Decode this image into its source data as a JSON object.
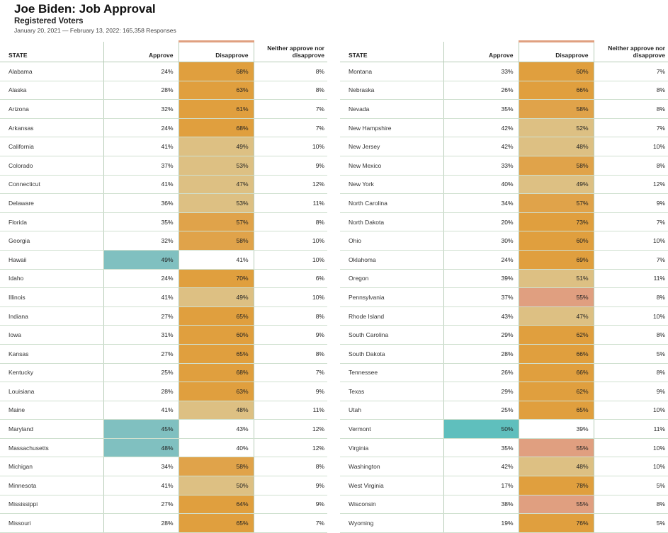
{
  "header": {
    "title": "Joe Biden: Job Approval",
    "subtitle": "Registered Voters",
    "dates": "January 20, 2021 — February 13, 2022: 165,358 Responses"
  },
  "columns": {
    "state": "STATE",
    "approve": "Approve",
    "disapprove": "Disapprove",
    "neither": "Neither approve nor disapprove"
  },
  "colors": {
    "approve_high": "#5fbfbd",
    "approve_mid": "#80c0c0",
    "disapprove_very_high": "#e09f3e",
    "disapprove_high": "#e0a34a",
    "disapprove_mid": "#ddc083",
    "disapprove_soft": "#e09f80",
    "neutral": "#ffffff"
  },
  "chart_data": {
    "type": "table",
    "title": "Joe Biden: Job Approval",
    "columns": [
      "STATE",
      "Approve",
      "Disapprove",
      "Neither approve nor disapprove"
    ],
    "rows": [
      {
        "state": "Alabama",
        "approve": "24%",
        "disapprove": "68%",
        "neither": "8%",
        "approve_shade": "neutral",
        "disapprove_shade": "disapprove_very_high"
      },
      {
        "state": "Alaska",
        "approve": "28%",
        "disapprove": "63%",
        "neither": "8%",
        "approve_shade": "neutral",
        "disapprove_shade": "disapprove_very_high"
      },
      {
        "state": "Arizona",
        "approve": "32%",
        "disapprove": "61%",
        "neither": "7%",
        "approve_shade": "neutral",
        "disapprove_shade": "disapprove_very_high"
      },
      {
        "state": "Arkansas",
        "approve": "24%",
        "disapprove": "68%",
        "neither": "7%",
        "approve_shade": "neutral",
        "disapprove_shade": "disapprove_very_high"
      },
      {
        "state": "California",
        "approve": "41%",
        "disapprove": "49%",
        "neither": "10%",
        "approve_shade": "neutral",
        "disapprove_shade": "disapprove_mid"
      },
      {
        "state": "Colorado",
        "approve": "37%",
        "disapprove": "53%",
        "neither": "9%",
        "approve_shade": "neutral",
        "disapprove_shade": "disapprove_mid"
      },
      {
        "state": "Connecticut",
        "approve": "41%",
        "disapprove": "47%",
        "neither": "12%",
        "approve_shade": "neutral",
        "disapprove_shade": "disapprove_mid"
      },
      {
        "state": "Delaware",
        "approve": "36%",
        "disapprove": "53%",
        "neither": "11%",
        "approve_shade": "neutral",
        "disapprove_shade": "disapprove_mid"
      },
      {
        "state": "Florida",
        "approve": "35%",
        "disapprove": "57%",
        "neither": "8%",
        "approve_shade": "neutral",
        "disapprove_shade": "disapprove_high"
      },
      {
        "state": "Georgia",
        "approve": "32%",
        "disapprove": "58%",
        "neither": "10%",
        "approve_shade": "neutral",
        "disapprove_shade": "disapprove_high"
      },
      {
        "state": "Hawaii",
        "approve": "49%",
        "disapprove": "41%",
        "neither": "10%",
        "approve_shade": "approve_mid",
        "disapprove_shade": "neutral"
      },
      {
        "state": "Idaho",
        "approve": "24%",
        "disapprove": "70%",
        "neither": "6%",
        "approve_shade": "neutral",
        "disapprove_shade": "disapprove_very_high"
      },
      {
        "state": "Illinois",
        "approve": "41%",
        "disapprove": "49%",
        "neither": "10%",
        "approve_shade": "neutral",
        "disapprove_shade": "disapprove_mid"
      },
      {
        "state": "Indiana",
        "approve": "27%",
        "disapprove": "65%",
        "neither": "8%",
        "approve_shade": "neutral",
        "disapprove_shade": "disapprove_very_high"
      },
      {
        "state": "Iowa",
        "approve": "31%",
        "disapprove": "60%",
        "neither": "9%",
        "approve_shade": "neutral",
        "disapprove_shade": "disapprove_very_high"
      },
      {
        "state": "Kansas",
        "approve": "27%",
        "disapprove": "65%",
        "neither": "8%",
        "approve_shade": "neutral",
        "disapprove_shade": "disapprove_very_high"
      },
      {
        "state": "Kentucky",
        "approve": "25%",
        "disapprove": "68%",
        "neither": "7%",
        "approve_shade": "neutral",
        "disapprove_shade": "disapprove_very_high"
      },
      {
        "state": "Louisiana",
        "approve": "28%",
        "disapprove": "63%",
        "neither": "9%",
        "approve_shade": "neutral",
        "disapprove_shade": "disapprove_very_high"
      },
      {
        "state": "Maine",
        "approve": "41%",
        "disapprove": "48%",
        "neither": "11%",
        "approve_shade": "neutral",
        "disapprove_shade": "disapprove_mid"
      },
      {
        "state": "Maryland",
        "approve": "45%",
        "disapprove": "43%",
        "neither": "12%",
        "approve_shade": "approve_mid",
        "disapprove_shade": "neutral"
      },
      {
        "state": "Massachusetts",
        "approve": "48%",
        "disapprove": "40%",
        "neither": "12%",
        "approve_shade": "approve_mid",
        "disapprove_shade": "neutral"
      },
      {
        "state": "Michigan",
        "approve": "34%",
        "disapprove": "58%",
        "neither": "8%",
        "approve_shade": "neutral",
        "disapprove_shade": "disapprove_high"
      },
      {
        "state": "Minnesota",
        "approve": "41%",
        "disapprove": "50%",
        "neither": "9%",
        "approve_shade": "neutral",
        "disapprove_shade": "disapprove_mid"
      },
      {
        "state": "Mississippi",
        "approve": "27%",
        "disapprove": "64%",
        "neither": "9%",
        "approve_shade": "neutral",
        "disapprove_shade": "disapprove_very_high"
      },
      {
        "state": "Missouri",
        "approve": "28%",
        "disapprove": "65%",
        "neither": "7%",
        "approve_shade": "neutral",
        "disapprove_shade": "disapprove_very_high"
      },
      {
        "state": "Montana",
        "approve": "33%",
        "disapprove": "60%",
        "neither": "7%",
        "approve_shade": "neutral",
        "disapprove_shade": "disapprove_very_high"
      },
      {
        "state": "Nebraska",
        "approve": "26%",
        "disapprove": "66%",
        "neither": "8%",
        "approve_shade": "neutral",
        "disapprove_shade": "disapprove_very_high"
      },
      {
        "state": "Nevada",
        "approve": "35%",
        "disapprove": "58%",
        "neither": "8%",
        "approve_shade": "neutral",
        "disapprove_shade": "disapprove_high"
      },
      {
        "state": "New Hampshire",
        "approve": "42%",
        "disapprove": "52%",
        "neither": "7%",
        "approve_shade": "neutral",
        "disapprove_shade": "disapprove_mid"
      },
      {
        "state": "New Jersey",
        "approve": "42%",
        "disapprove": "48%",
        "neither": "10%",
        "approve_shade": "neutral",
        "disapprove_shade": "disapprove_mid"
      },
      {
        "state": "New Mexico",
        "approve": "33%",
        "disapprove": "58%",
        "neither": "8%",
        "approve_shade": "neutral",
        "disapprove_shade": "disapprove_high"
      },
      {
        "state": "New York",
        "approve": "40%",
        "disapprove": "49%",
        "neither": "12%",
        "approve_shade": "neutral",
        "disapprove_shade": "disapprove_mid"
      },
      {
        "state": "North Carolina",
        "approve": "34%",
        "disapprove": "57%",
        "neither": "9%",
        "approve_shade": "neutral",
        "disapprove_shade": "disapprove_high"
      },
      {
        "state": "North Dakota",
        "approve": "20%",
        "disapprove": "73%",
        "neither": "7%",
        "approve_shade": "neutral",
        "disapprove_shade": "disapprove_very_high"
      },
      {
        "state": "Ohio",
        "approve": "30%",
        "disapprove": "60%",
        "neither": "10%",
        "approve_shade": "neutral",
        "disapprove_shade": "disapprove_very_high"
      },
      {
        "state": "Oklahoma",
        "approve": "24%",
        "disapprove": "69%",
        "neither": "7%",
        "approve_shade": "neutral",
        "disapprove_shade": "disapprove_very_high"
      },
      {
        "state": "Oregon",
        "approve": "39%",
        "disapprove": "51%",
        "neither": "11%",
        "approve_shade": "neutral",
        "disapprove_shade": "disapprove_mid"
      },
      {
        "state": "Pennsylvania",
        "approve": "37%",
        "disapprove": "55%",
        "neither": "8%",
        "approve_shade": "neutral",
        "disapprove_shade": "disapprove_soft"
      },
      {
        "state": "Rhode Island",
        "approve": "43%",
        "disapprove": "47%",
        "neither": "10%",
        "approve_shade": "neutral",
        "disapprove_shade": "disapprove_mid"
      },
      {
        "state": "South Carolina",
        "approve": "29%",
        "disapprove": "62%",
        "neither": "8%",
        "approve_shade": "neutral",
        "disapprove_shade": "disapprove_very_high"
      },
      {
        "state": "South Dakota",
        "approve": "28%",
        "disapprove": "66%",
        "neither": "5%",
        "approve_shade": "neutral",
        "disapprove_shade": "disapprove_very_high"
      },
      {
        "state": "Tennessee",
        "approve": "26%",
        "disapprove": "66%",
        "neither": "8%",
        "approve_shade": "neutral",
        "disapprove_shade": "disapprove_very_high"
      },
      {
        "state": "Texas",
        "approve": "29%",
        "disapprove": "62%",
        "neither": "9%",
        "approve_shade": "neutral",
        "disapprove_shade": "disapprove_very_high"
      },
      {
        "state": "Utah",
        "approve": "25%",
        "disapprove": "65%",
        "neither": "10%",
        "approve_shade": "neutral",
        "disapprove_shade": "disapprove_very_high"
      },
      {
        "state": "Vermont",
        "approve": "50%",
        "disapprove": "39%",
        "neither": "11%",
        "approve_shade": "approve_high",
        "disapprove_shade": "neutral"
      },
      {
        "state": "Virginia",
        "approve": "35%",
        "disapprove": "55%",
        "neither": "10%",
        "approve_shade": "neutral",
        "disapprove_shade": "disapprove_soft"
      },
      {
        "state": "Washington",
        "approve": "42%",
        "disapprove": "48%",
        "neither": "10%",
        "approve_shade": "neutral",
        "disapprove_shade": "disapprove_mid"
      },
      {
        "state": "West Virginia",
        "approve": "17%",
        "disapprove": "78%",
        "neither": "5%",
        "approve_shade": "neutral",
        "disapprove_shade": "disapprove_very_high"
      },
      {
        "state": "Wisconsin",
        "approve": "38%",
        "disapprove": "55%",
        "neither": "8%",
        "approve_shade": "neutral",
        "disapprove_shade": "disapprove_soft"
      },
      {
        "state": "Wyoming",
        "approve": "19%",
        "disapprove": "76%",
        "neither": "5%",
        "approve_shade": "neutral",
        "disapprove_shade": "disapprove_very_high"
      }
    ]
  }
}
